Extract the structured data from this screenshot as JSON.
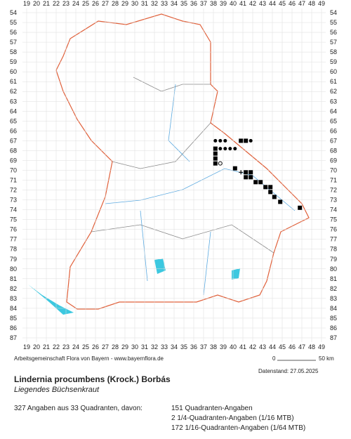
{
  "map": {
    "columns": [
      19,
      20,
      21,
      22,
      23,
      24,
      25,
      26,
      27,
      28,
      29,
      30,
      31,
      32,
      33,
      34,
      35,
      36,
      37,
      38,
      39,
      40,
      41,
      42,
      43,
      44,
      45,
      46,
      47,
      48,
      49
    ],
    "rows": [
      54,
      55,
      56,
      57,
      58,
      59,
      60,
      61,
      62,
      63,
      64,
      65,
      66,
      67,
      68,
      69,
      70,
      71,
      72,
      73,
      74,
      75,
      76,
      77,
      78,
      79,
      80,
      81,
      82,
      83,
      84,
      85,
      86,
      87
    ],
    "points": [
      {
        "x": 38.2,
        "y": 67,
        "symbol": "dot"
      },
      {
        "x": 38.7,
        "y": 67,
        "symbol": "dot"
      },
      {
        "x": 39.2,
        "y": 67,
        "symbol": "dot"
      },
      {
        "x": 40.8,
        "y": 67,
        "symbol": "square"
      },
      {
        "x": 41.3,
        "y": 67,
        "symbol": "square"
      },
      {
        "x": 41.8,
        "y": 67,
        "symbol": "dot"
      },
      {
        "x": 38.7,
        "y": 67.8,
        "symbol": "dot"
      },
      {
        "x": 39.2,
        "y": 67.8,
        "symbol": "dot"
      },
      {
        "x": 39.7,
        "y": 67.8,
        "symbol": "dot"
      },
      {
        "x": 40.2,
        "y": 67.8,
        "symbol": "dot"
      },
      {
        "x": 38.2,
        "y": 67.8,
        "symbol": "square"
      },
      {
        "x": 38.2,
        "y": 68.3,
        "symbol": "square"
      },
      {
        "x": 38.2,
        "y": 68.8,
        "symbol": "square"
      },
      {
        "x": 38.2,
        "y": 69.3,
        "symbol": "square"
      },
      {
        "x": 38.7,
        "y": 69.3,
        "symbol": "circle"
      },
      {
        "x": 40.2,
        "y": 69.8,
        "symbol": "square"
      },
      {
        "x": 40.8,
        "y": 70.2,
        "symbol": "plus"
      },
      {
        "x": 41.3,
        "y": 70.2,
        "symbol": "square"
      },
      {
        "x": 41.8,
        "y": 70.2,
        "symbol": "square"
      },
      {
        "x": 41.3,
        "y": 70.7,
        "symbol": "square"
      },
      {
        "x": 41.8,
        "y": 70.7,
        "symbol": "square"
      },
      {
        "x": 42.3,
        "y": 71.2,
        "symbol": "square"
      },
      {
        "x": 42.8,
        "y": 71.2,
        "symbol": "square"
      },
      {
        "x": 43.3,
        "y": 71.7,
        "symbol": "square"
      },
      {
        "x": 43.8,
        "y": 71.7,
        "symbol": "square"
      },
      {
        "x": 43.8,
        "y": 72.2,
        "symbol": "square"
      },
      {
        "x": 44.2,
        "y": 72.7,
        "symbol": "square"
      },
      {
        "x": 44.8,
        "y": 73.2,
        "symbol": "square"
      },
      {
        "x": 46.8,
        "y": 73.8,
        "symbol": "square"
      }
    ],
    "credit": "Arbeitsgemeinschaft Flora von Bayern - www.bayernflora.de",
    "scale_start": "0",
    "scale_end": "50 km",
    "date": "Datenstand: 27.05.2025"
  },
  "species": {
    "name": "Lindernia procumbens (Krock.) Borbás",
    "common_name": "Liegendes Büchsenkraut"
  },
  "summary": {
    "total": "327 Angaben aus 33 Quadranten, davon:",
    "lines": [
      "151 Quadranten-Angaben",
      "2 1/4-Quadranten-Angaben (1/16 MTB)",
      "172 1/16-Quadranten-Angaben (1/64 MTB)"
    ]
  }
}
